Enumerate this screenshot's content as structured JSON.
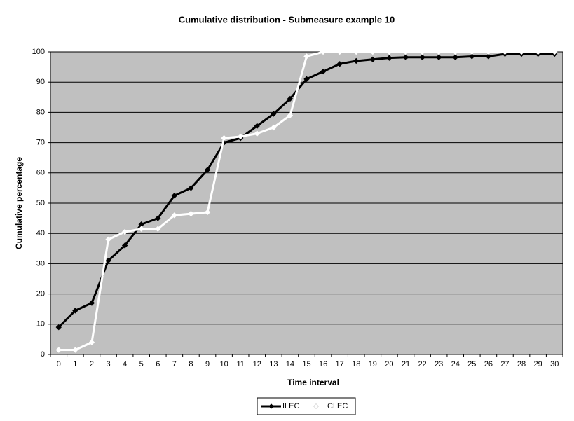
{
  "chart_data": {
    "type": "line",
    "title": "Cumulative distribution - Submeasure example 10",
    "x_label": "Time interval",
    "y_label": "Cumulative percentage",
    "categories": [
      "0",
      "1",
      "2",
      "3",
      "4",
      "5",
      "6",
      "7",
      "8",
      "9",
      "10",
      "11",
      "12",
      "13",
      "14",
      "15",
      "16",
      "17",
      "18",
      "19",
      "20",
      "21",
      "22",
      "23",
      "24",
      "25",
      "26",
      "27",
      "28",
      "29",
      "30"
    ],
    "series": [
      {
        "name": "ILEC",
        "color": "#000000",
        "values": [
          9,
          14.5,
          17,
          31,
          36,
          43,
          45,
          52.5,
          55,
          61,
          70,
          71.5,
          75.5,
          79.5,
          84.5,
          91,
          93.5,
          96,
          97,
          97.5,
          98,
          98.2,
          98.2,
          98.2,
          98.2,
          98.5,
          98.5,
          99.3,
          99.3,
          99.3,
          99.3
        ]
      },
      {
        "name": "CLEC",
        "color": "#ffffff",
        "values": [
          1.5,
          1.5,
          4,
          38,
          40.5,
          41.5,
          41.5,
          46,
          46.5,
          47,
          71.5,
          72,
          73,
          75,
          79,
          98.5,
          100,
          100,
          100,
          100,
          100,
          100,
          100,
          100,
          100,
          100,
          100,
          100,
          100,
          100,
          100
        ]
      }
    ],
    "ylim": [
      0,
      100
    ],
    "yticks": [
      0,
      10,
      20,
      30,
      40,
      50,
      60,
      70,
      80,
      90,
      100
    ],
    "grid": true,
    "legend": "bottom",
    "plot_background": "#c0c0c0"
  }
}
